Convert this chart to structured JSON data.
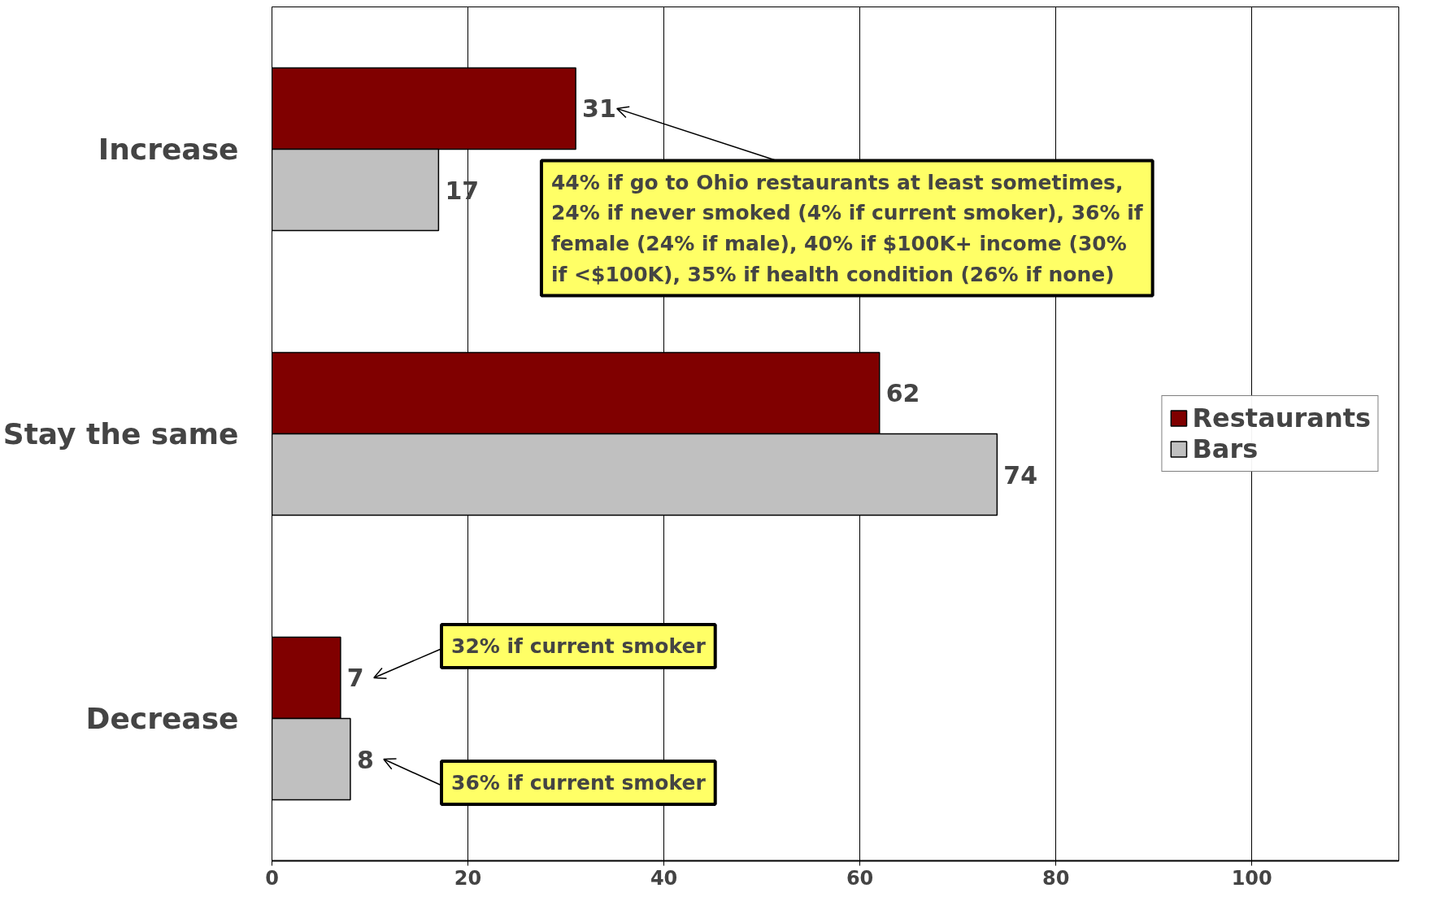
{
  "chart_data": {
    "type": "bar",
    "orientation": "horizontal",
    "categories": [
      "Increase",
      "Stay the same",
      "Decrease"
    ],
    "series": [
      {
        "name": "Restaurants",
        "color": "#800000",
        "values": [
          31,
          62,
          7
        ]
      },
      {
        "name": "Bars",
        "color": "#c0c0c0",
        "values": [
          17,
          74,
          8
        ]
      }
    ],
    "xlim": [
      0,
      115
    ],
    "xticks": [
      0,
      20,
      40,
      60,
      80,
      100
    ],
    "grid": "x",
    "legend": "right",
    "data_labels": true,
    "annotations": [
      {
        "text": "44% if go to Ohio restaurants at least sometimes,\n24% if never smoked (4% if current smoker), 36% if\nfemale (24% if male), 40% if $100K+ income (30%\nif <$100K), 35% if health condition (26% if none)",
        "x": 31,
        "y": "Increase"
      },
      "32% if current smoker",
      "36% if current smoker"
    ]
  }
}
